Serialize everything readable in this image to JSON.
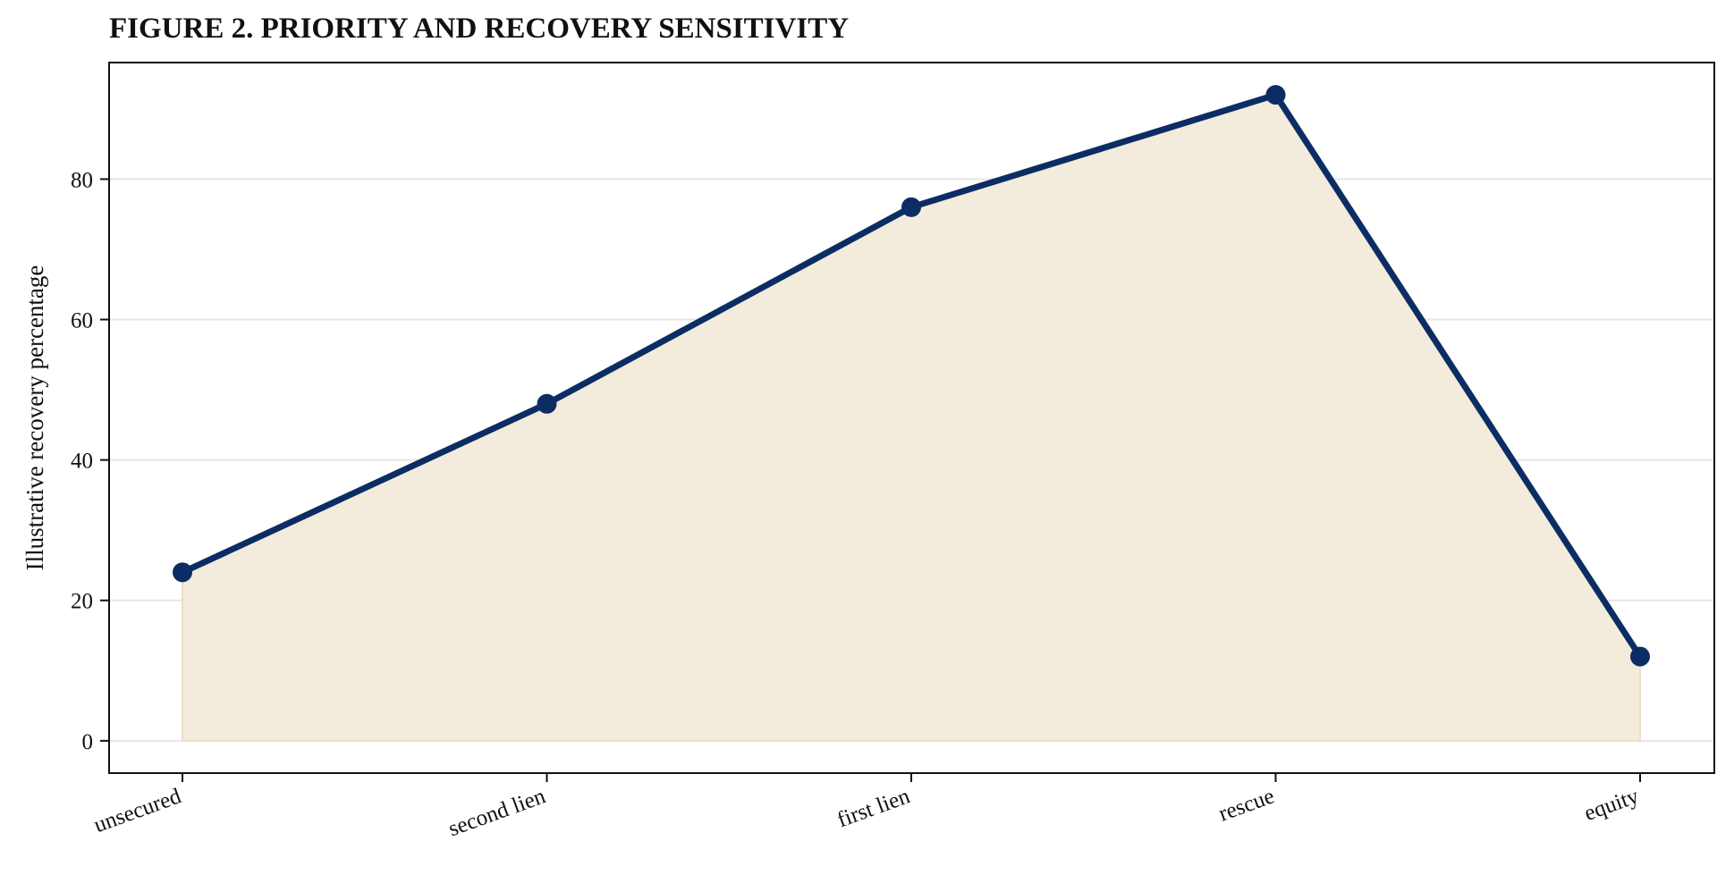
{
  "chart_data": {
    "type": "area",
    "title": "FIGURE 2. PRIORITY AND RECOVERY SENSITIVITY",
    "xlabel": "",
    "ylabel": "Illustrative recovery percentage",
    "categories": [
      "unsecured",
      "second lien",
      "first lien",
      "rescue",
      "equity"
    ],
    "values": [
      24,
      48,
      76,
      92,
      12
    ],
    "ylim": [
      -4.6,
      96.6
    ],
    "yticks": [
      0,
      20,
      40,
      60,
      80
    ],
    "grid": true,
    "legend": "none",
    "colors": {
      "line": "#0b2d63",
      "fill": "#f3ebdc",
      "grid": "#e6e6e6",
      "axis": "#111111"
    }
  }
}
